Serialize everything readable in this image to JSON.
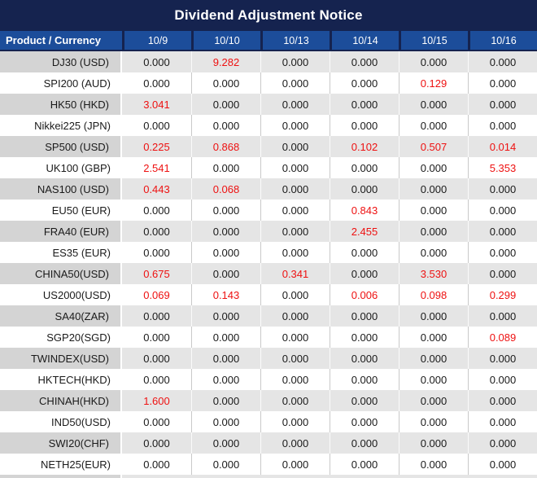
{
  "title": "Dividend Adjustment Notice",
  "colors": {
    "title_bg": "#15234f",
    "header_bg": "#1c4d9a",
    "highlight_red": "#ee1111",
    "row_gray_product": "#d4d4d4",
    "row_gray_value": "#e5e5e5",
    "divider_gray": "#c9c9c9",
    "text_ink": "#1a1a1a"
  },
  "table": {
    "product_header": "Product / Currency",
    "date_headers": [
      "10/9",
      "10/10",
      "10/13",
      "10/14",
      "10/15",
      "10/16"
    ],
    "rows": [
      {
        "product": "DJ30 (USD)",
        "values": [
          "0.000",
          "9.282",
          "0.000",
          "0.000",
          "0.000",
          "0.000"
        ],
        "red": [
          false,
          true,
          false,
          false,
          false,
          false
        ]
      },
      {
        "product": "SPI200 (AUD)",
        "values": [
          "0.000",
          "0.000",
          "0.000",
          "0.000",
          "0.129",
          "0.000"
        ],
        "red": [
          false,
          false,
          false,
          false,
          true,
          false
        ]
      },
      {
        "product": "HK50 (HKD)",
        "values": [
          "3.041",
          "0.000",
          "0.000",
          "0.000",
          "0.000",
          "0.000"
        ],
        "red": [
          true,
          false,
          false,
          false,
          false,
          false
        ]
      },
      {
        "product": "Nikkei225 (JPN)",
        "values": [
          "0.000",
          "0.000",
          "0.000",
          "0.000",
          "0.000",
          "0.000"
        ],
        "red": [
          false,
          false,
          false,
          false,
          false,
          false
        ]
      },
      {
        "product": "SP500 (USD)",
        "values": [
          "0.225",
          "0.868",
          "0.000",
          "0.102",
          "0.507",
          "0.014"
        ],
        "red": [
          true,
          true,
          false,
          true,
          true,
          true
        ]
      },
      {
        "product": "UK100 (GBP)",
        "values": [
          "2.541",
          "0.000",
          "0.000",
          "0.000",
          "0.000",
          "5.353"
        ],
        "red": [
          true,
          false,
          false,
          false,
          false,
          true
        ]
      },
      {
        "product": "NAS100 (USD)",
        "values": [
          "0.443",
          "0.068",
          "0.000",
          "0.000",
          "0.000",
          "0.000"
        ],
        "red": [
          true,
          true,
          false,
          false,
          false,
          false
        ]
      },
      {
        "product": "EU50 (EUR)",
        "values": [
          "0.000",
          "0.000",
          "0.000",
          "0.843",
          "0.000",
          "0.000"
        ],
        "red": [
          false,
          false,
          false,
          true,
          false,
          false
        ]
      },
      {
        "product": "FRA40 (EUR)",
        "values": [
          "0.000",
          "0.000",
          "0.000",
          "2.455",
          "0.000",
          "0.000"
        ],
        "red": [
          false,
          false,
          false,
          true,
          false,
          false
        ]
      },
      {
        "product": "ES35 (EUR)",
        "values": [
          "0.000",
          "0.000",
          "0.000",
          "0.000",
          "0.000",
          "0.000"
        ],
        "red": [
          false,
          false,
          false,
          false,
          false,
          false
        ]
      },
      {
        "product": "CHINA50(USD)",
        "values": [
          "0.675",
          "0.000",
          "0.341",
          "0.000",
          "3.530",
          "0.000"
        ],
        "red": [
          true,
          false,
          true,
          false,
          true,
          false
        ]
      },
      {
        "product": "US2000(USD)",
        "values": [
          "0.069",
          "0.143",
          "0.000",
          "0.006",
          "0.098",
          "0.299"
        ],
        "red": [
          true,
          true,
          false,
          true,
          true,
          true
        ]
      },
      {
        "product": "SA40(ZAR)",
        "values": [
          "0.000",
          "0.000",
          "0.000",
          "0.000",
          "0.000",
          "0.000"
        ],
        "red": [
          false,
          false,
          false,
          false,
          false,
          false
        ]
      },
      {
        "product": "SGP20(SGD)",
        "values": [
          "0.000",
          "0.000",
          "0.000",
          "0.000",
          "0.000",
          "0.089"
        ],
        "red": [
          false,
          false,
          false,
          false,
          false,
          true
        ]
      },
      {
        "product": "TWINDEX(USD)",
        "values": [
          "0.000",
          "0.000",
          "0.000",
          "0.000",
          "0.000",
          "0.000"
        ],
        "red": [
          false,
          false,
          false,
          false,
          false,
          false
        ]
      },
      {
        "product": "HKTECH(HKD)",
        "values": [
          "0.000",
          "0.000",
          "0.000",
          "0.000",
          "0.000",
          "0.000"
        ],
        "red": [
          false,
          false,
          false,
          false,
          false,
          false
        ]
      },
      {
        "product": "CHINAH(HKD)",
        "values": [
          "1.600",
          "0.000",
          "0.000",
          "0.000",
          "0.000",
          "0.000"
        ],
        "red": [
          true,
          false,
          false,
          false,
          false,
          false
        ]
      },
      {
        "product": "IND50(USD)",
        "values": [
          "0.000",
          "0.000",
          "0.000",
          "0.000",
          "0.000",
          "0.000"
        ],
        "red": [
          false,
          false,
          false,
          false,
          false,
          false
        ]
      },
      {
        "product": "SWI20(CHF)",
        "values": [
          "0.000",
          "0.000",
          "0.000",
          "0.000",
          "0.000",
          "0.000"
        ],
        "red": [
          false,
          false,
          false,
          false,
          false,
          false
        ]
      },
      {
        "product": "NETH25(EUR)",
        "values": [
          "0.000",
          "0.000",
          "0.000",
          "0.000",
          "0.000",
          "0.000"
        ],
        "red": [
          false,
          false,
          false,
          false,
          false,
          false
        ]
      }
    ]
  }
}
